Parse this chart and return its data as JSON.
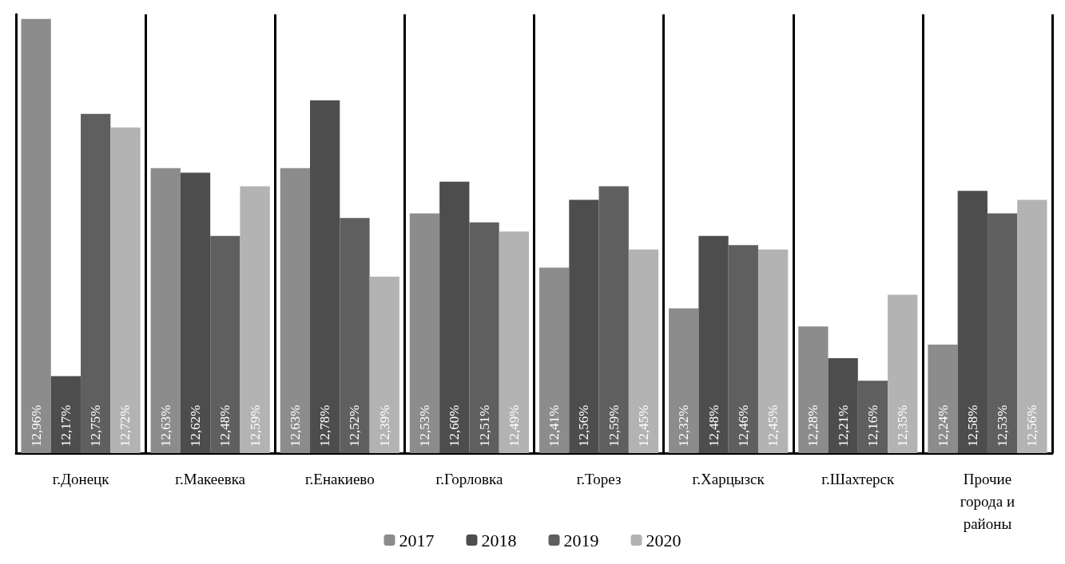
{
  "chart_data": {
    "type": "bar",
    "categories": [
      "г.Донецк",
      "г.Макеевка",
      "г.Енакиево",
      "г.Горловка",
      "г.Торез",
      "г.Харцызск",
      "г.Шахтерск",
      "Прочие города и районы"
    ],
    "series": [
      {
        "name": "2017",
        "color": "#8c8c8c",
        "values": [
          12.96,
          12.63,
          12.63,
          12.53,
          12.41,
          12.32,
          12.28,
          12.24
        ],
        "value_labels": [
          "12,96%",
          "12,63%",
          "12,63%",
          "12,53%",
          "12,41%",
          "12,32%",
          "12,28%",
          "12,24%"
        ]
      },
      {
        "name": "2018",
        "color": "#4d4d4d",
        "values": [
          12.17,
          12.62,
          12.78,
          12.6,
          12.56,
          12.48,
          12.21,
          12.58
        ],
        "value_labels": [
          "12,17%",
          "12,62%",
          "12,78%",
          "12,60%",
          "12,56%",
          "12,48%",
          "12,21%",
          "12,58%"
        ]
      },
      {
        "name": "2019",
        "color": "#5f5f5f",
        "values": [
          12.75,
          12.48,
          12.52,
          12.51,
          12.59,
          12.46,
          12.16,
          12.53
        ],
        "value_labels": [
          "12,75%",
          "12,48%",
          "12,52%",
          "12,51%",
          "12,59%",
          "12,46%",
          "12,16%",
          "12,53%"
        ]
      },
      {
        "name": "2020",
        "color": "#b3b3b3",
        "values": [
          12.72,
          12.59,
          12.39,
          12.49,
          12.45,
          12.45,
          12.35,
          12.56
        ],
        "value_labels": [
          "12,72%",
          "12,59%",
          "12,39%",
          "12,49%",
          "12,45%",
          "12,45%",
          "12,35%",
          "12,56%"
        ]
      }
    ],
    "ylim": [
      12,
      12.97
    ],
    "tick_labels": "x",
    "grid": "x",
    "legend": "bottom"
  }
}
